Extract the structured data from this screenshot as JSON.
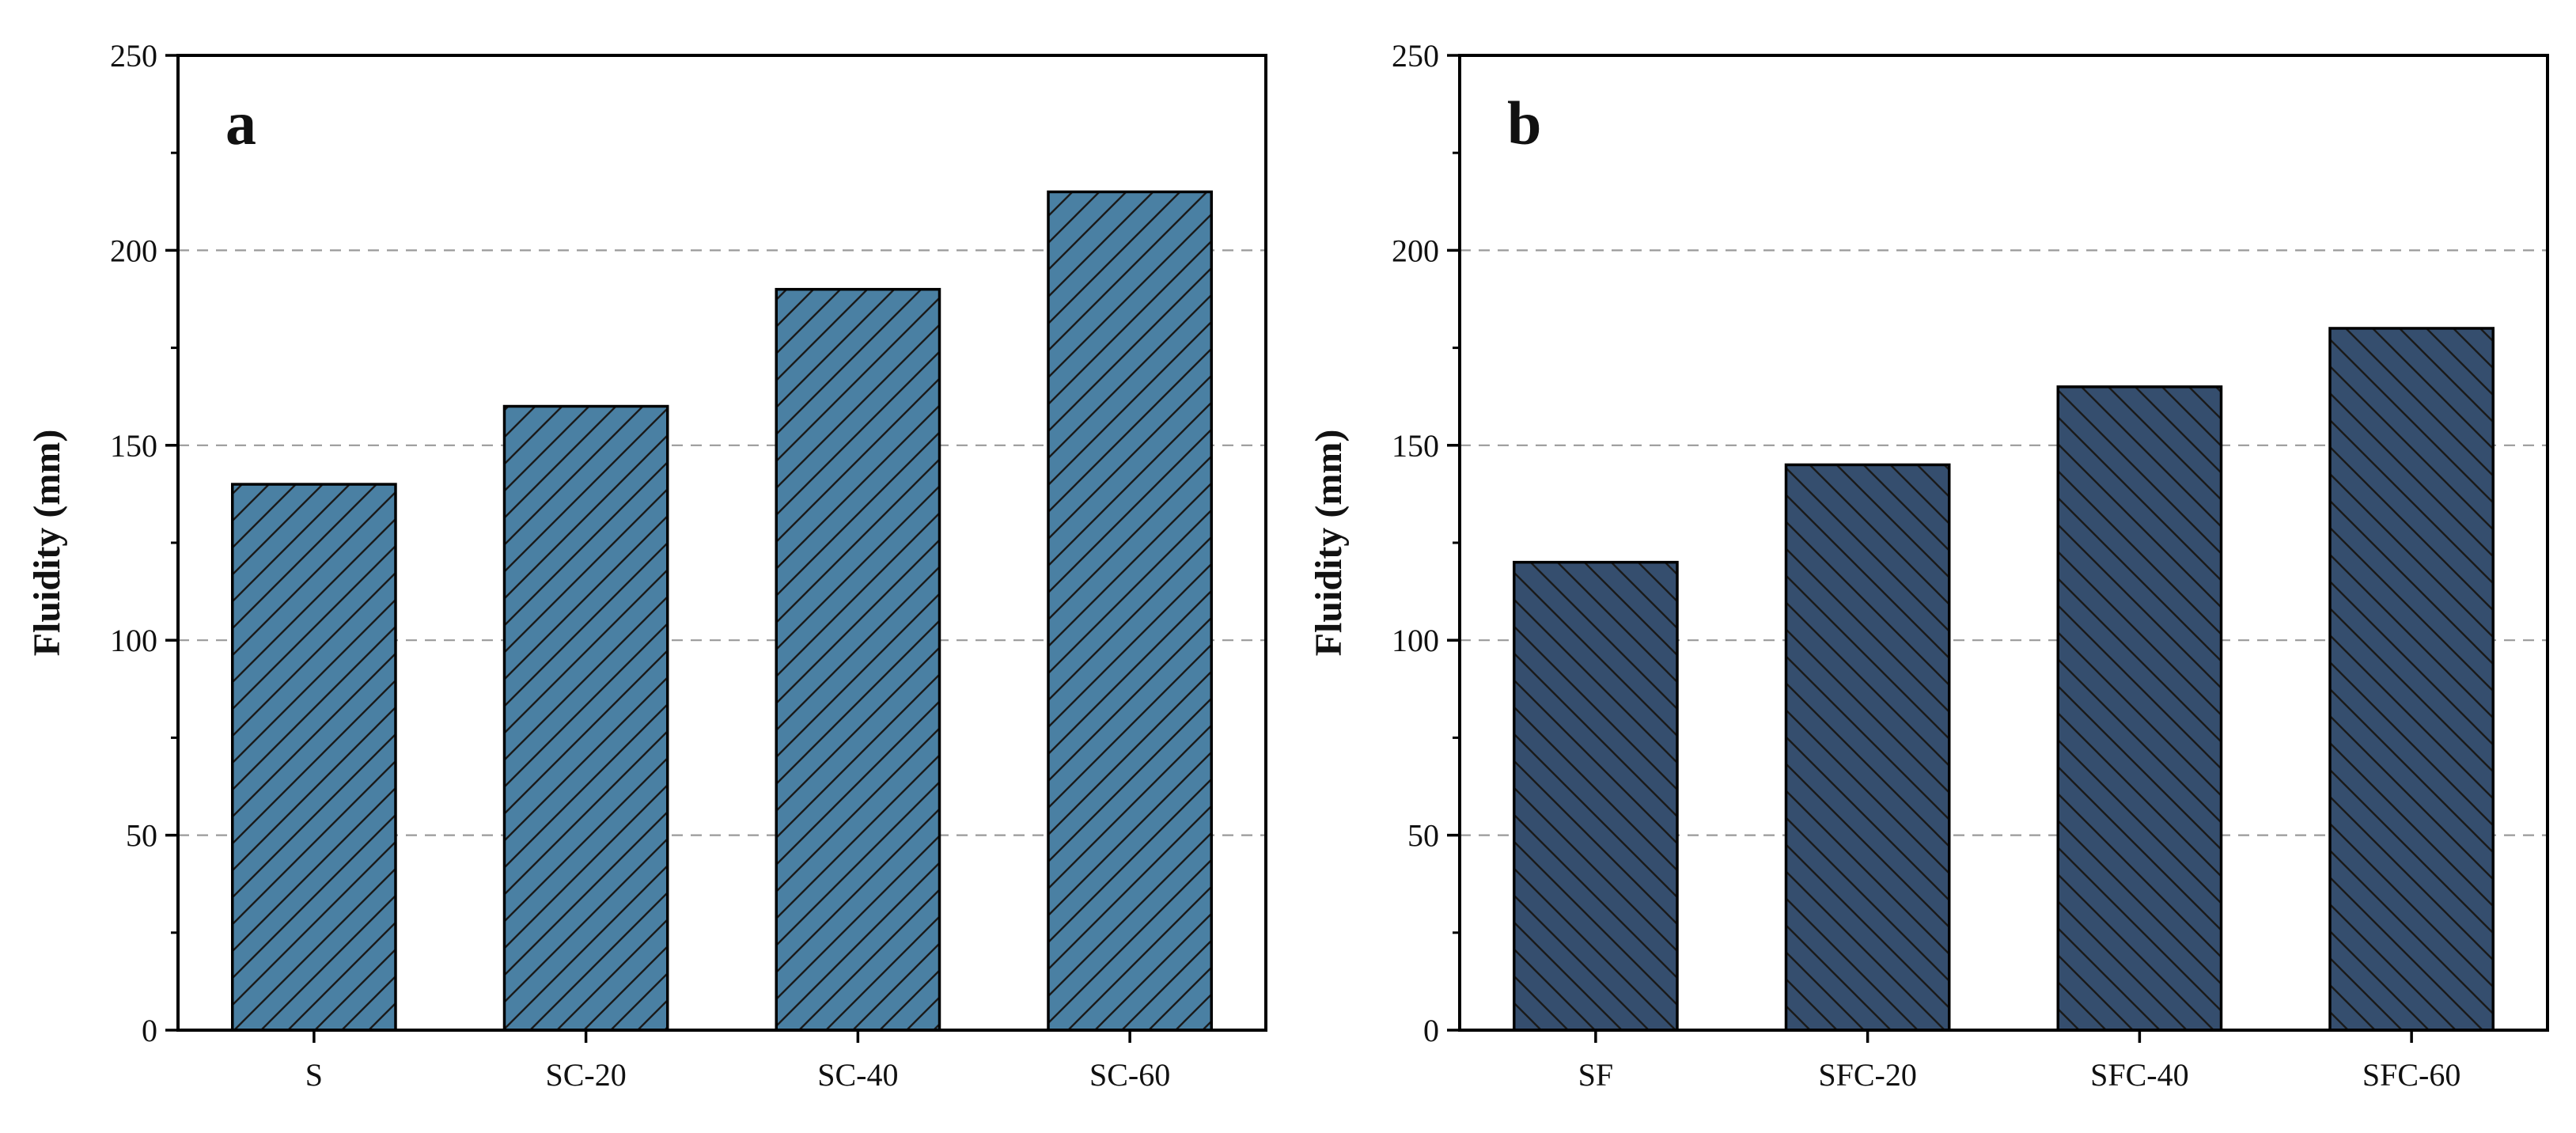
{
  "chart_data": [
    {
      "type": "bar",
      "panel_label": "a",
      "categories": [
        "S",
        "SC-20",
        "SC-40",
        "SC-60"
      ],
      "values": [
        140,
        160,
        190,
        215
      ],
      "ylabel": "Fluidity (mm)",
      "xlabel": "",
      "ylim": [
        0,
        250
      ],
      "yticks": [
        0,
        50,
        100,
        150,
        200,
        250
      ],
      "grid": "horizontal dashed",
      "bar_color": "#4a80a3",
      "hatch": "forward-diagonal"
    },
    {
      "type": "bar",
      "panel_label": "b",
      "categories": [
        "SF",
        "SFC-20",
        "SFC-40",
        "SFC-60"
      ],
      "values": [
        120,
        145,
        165,
        180
      ],
      "ylabel": "Fluidity (mm)",
      "xlabel": "",
      "ylim": [
        0,
        250
      ],
      "yticks": [
        0,
        50,
        100,
        150,
        200,
        250
      ],
      "grid": "horizontal dashed",
      "bar_color": "#354e6e",
      "hatch": "back-diagonal"
    }
  ]
}
